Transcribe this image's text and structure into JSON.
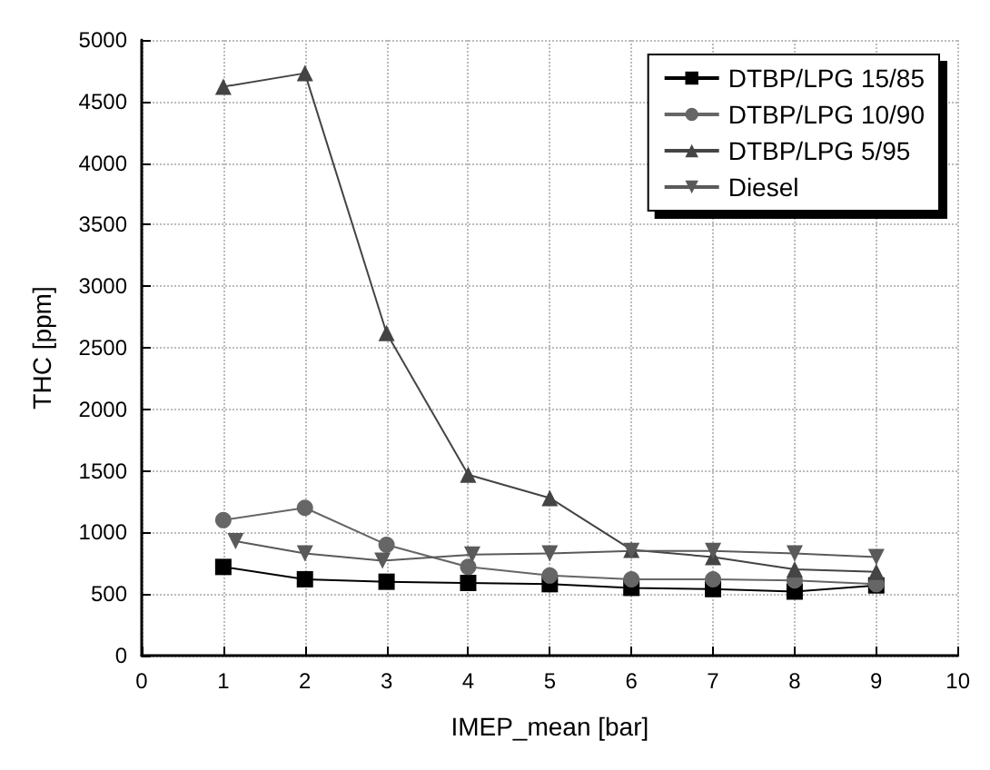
{
  "chart_data": {
    "type": "line",
    "xlabel": "IMEP_mean [bar]",
    "ylabel": "THC [ppm]",
    "x": [
      1,
      2,
      3,
      4,
      5,
      6,
      7,
      8,
      9
    ],
    "series": [
      {
        "name": "DTBP/LPG 15/85",
        "color": "#000000",
        "marker": "square",
        "values": [
          720,
          620,
          600,
          590,
          580,
          550,
          540,
          520,
          570
        ]
      },
      {
        "name": "DTBP/LPG 10/90",
        "color": "#666666",
        "marker": "circle",
        "values": [
          1100,
          1200,
          900,
          720,
          650,
          620,
          620,
          610,
          580
        ]
      },
      {
        "name": "DTBP/LPG 5/95",
        "color": "#444444",
        "marker": "triangle",
        "values": [
          4620,
          4730,
          2620,
          1470,
          1280,
          860,
          800,
          700,
          680
        ]
      },
      {
        "name": "Diesel",
        "color": "#5a5a5a",
        "marker": "triangle-down",
        "x": [
          1.15,
          2,
          2.95,
          4.05,
          5,
          6,
          7,
          8,
          9
        ],
        "values": [
          930,
          830,
          770,
          820,
          830,
          850,
          850,
          830,
          800
        ]
      }
    ],
    "xlim": [
      0,
      10
    ],
    "xticks": [
      0,
      1,
      2,
      3,
      4,
      5,
      6,
      7,
      8,
      9,
      10
    ],
    "ylim": [
      0,
      5000
    ],
    "yticks": [
      0,
      500,
      1000,
      1500,
      2000,
      2500,
      3000,
      3500,
      4000,
      4500,
      5000
    ],
    "grid": true,
    "legend": "top right",
    "line_style": "solid"
  }
}
